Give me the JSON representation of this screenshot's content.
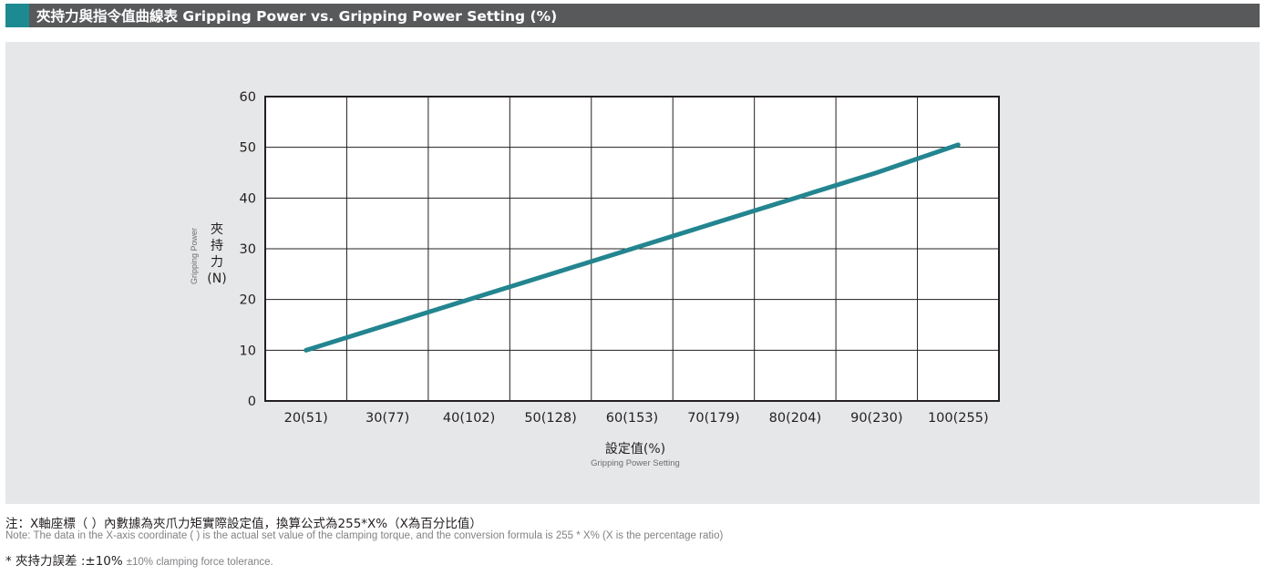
{
  "header": {
    "title": "夾持力與指令值曲線表 Gripping Power vs. Gripping Power Setting (%)",
    "accent_color": "#1d8a91",
    "bar_color": "#58595b"
  },
  "chart_data": {
    "type": "line",
    "title": "夾持力與指令值曲線表 Gripping Power vs. Gripping Power Setting (%)",
    "categories": [
      "20(51)",
      "30(77)",
      "40(102)",
      "50(128)",
      "60(153)",
      "70(179)",
      "80(204)",
      "90(230)",
      "100(255)"
    ],
    "series": [
      {
        "name": "Gripping Power",
        "values": [
          10,
          15,
          20,
          25,
          30,
          35,
          40,
          45,
          50.5
        ],
        "color": "#23858f"
      }
    ],
    "xlabel": "設定值(%)",
    "xlabel_en": "Gripping Power Setting",
    "ylabel_chars": [
      "夾",
      "持",
      "力",
      "(N)"
    ],
    "ylabel_en": "Gripping Power",
    "ylim": [
      0,
      60
    ],
    "yticks": [
      0,
      10,
      20,
      30,
      40,
      50,
      60
    ],
    "grid": true
  },
  "notes": {
    "cn": "注：X軸座標（ ）內數據為夾爪力矩實際設定值，換算公式為255*X%（X為百分比值）",
    "en": "Note: The data in the X-axis coordinate ( ) is the actual set value of the clamping torque, and the conversion formula is 255 * X% (X is the percentage ratio)",
    "tolerance_cn": "* 夾持力誤差 :±10%",
    "tolerance_en": "±10% clamping force tolerance."
  }
}
